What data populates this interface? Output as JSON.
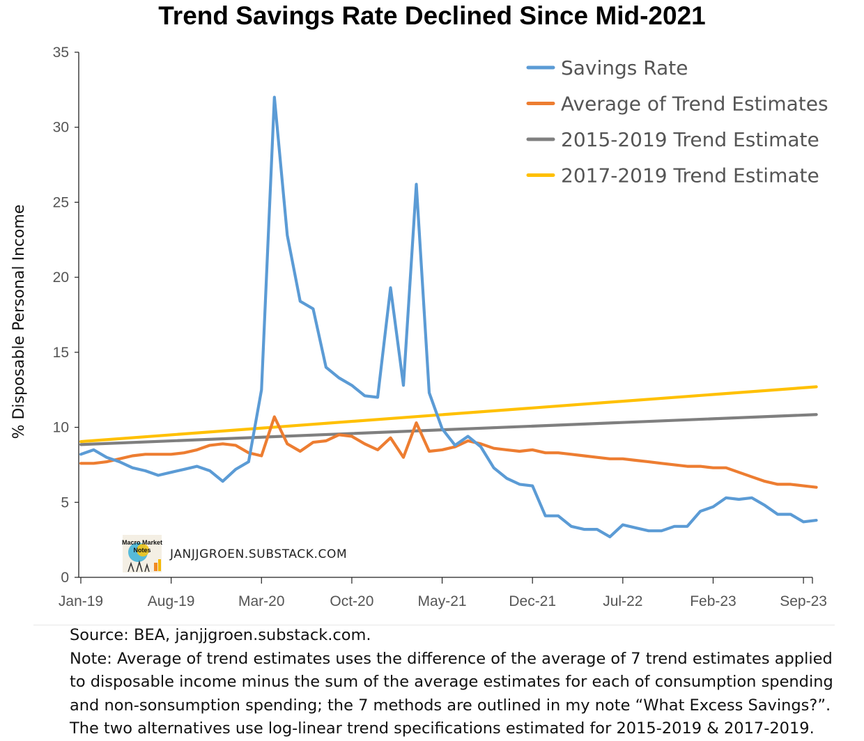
{
  "chart_data": {
    "type": "line",
    "title": "Trend Savings Rate Declined Since Mid-2021",
    "ylabel": "% Disposable Personal Income",
    "xlabel": "",
    "ylim": [
      0,
      35
    ],
    "yticks": [
      0,
      5,
      10,
      15,
      20,
      25,
      30,
      35
    ],
    "x_tick_labels": [
      "Jan-19",
      "Aug-19",
      "Mar-20",
      "Oct-20",
      "May-21",
      "Dec-21",
      "Jul-22",
      "Feb-23",
      "Sep-23"
    ],
    "x_start": "Jan-19",
    "x_end": "Oct-23",
    "grid": false,
    "legend_position": "top-right",
    "series": [
      {
        "name": "Savings Rate",
        "color": "#5b9bd5",
        "values": [
          8.2,
          8.5,
          8.0,
          7.7,
          7.3,
          7.1,
          6.8,
          7.0,
          7.2,
          7.4,
          7.1,
          6.4,
          7.2,
          7.7,
          12.5,
          32.0,
          22.8,
          18.4,
          17.9,
          14.0,
          13.3,
          12.8,
          12.1,
          12.0,
          19.3,
          12.8,
          26.2,
          12.3,
          9.9,
          8.8,
          9.4,
          8.7,
          7.3,
          6.6,
          6.2,
          6.1,
          4.1,
          4.1,
          3.4,
          3.2,
          3.2,
          2.7,
          3.5,
          3.3,
          3.1,
          3.1,
          3.4,
          3.4,
          4.4,
          4.7,
          5.3,
          5.2,
          5.3,
          4.8,
          4.2,
          4.2,
          3.7,
          3.8
        ]
      },
      {
        "name": "Average of Trend Estimates",
        "color": "#ed7d31",
        "values": [
          7.6,
          7.6,
          7.7,
          7.9,
          8.1,
          8.2,
          8.2,
          8.2,
          8.3,
          8.5,
          8.8,
          8.9,
          8.8,
          8.3,
          8.1,
          10.7,
          8.9,
          8.4,
          9.0,
          9.1,
          9.5,
          9.4,
          8.9,
          8.5,
          9.3,
          8.0,
          10.3,
          8.4,
          8.5,
          8.7,
          9.1,
          8.9,
          8.6,
          8.5,
          8.4,
          8.5,
          8.3,
          8.3,
          8.2,
          8.1,
          8.0,
          7.9,
          7.9,
          7.8,
          7.7,
          7.6,
          7.5,
          7.4,
          7.4,
          7.3,
          7.3,
          7.0,
          6.7,
          6.4,
          6.2,
          6.2,
          6.1,
          6.0
        ]
      },
      {
        "name": "2015-2019 Trend Estimate",
        "color": "#7f7f7f",
        "start": 8.85,
        "end": 10.85
      },
      {
        "name": "2017-2019 Trend Estimate",
        "color": "#ffc000",
        "start": 9.05,
        "end": 12.7
      }
    ]
  },
  "watermark": {
    "logo_text": "Macro Market Notes",
    "site": "JANJJGROEN.SUBSTACK.COM"
  },
  "footer": {
    "source": "Source: BEA, janjjgroen.substack.com.",
    "note_lines": [
      "Note: Average of trend estimates uses the difference of the average of 7 trend estimates applied",
      "to disposable income minus the sum of the average estimates for each of consumption spending",
      "and non-sonsumption spending; the 7 methods are outlined in my note “What Excess Savings?”.",
      "The two alternatives use log-linear trend specifications estimated for 2015-2019 & 2017-2019."
    ]
  }
}
